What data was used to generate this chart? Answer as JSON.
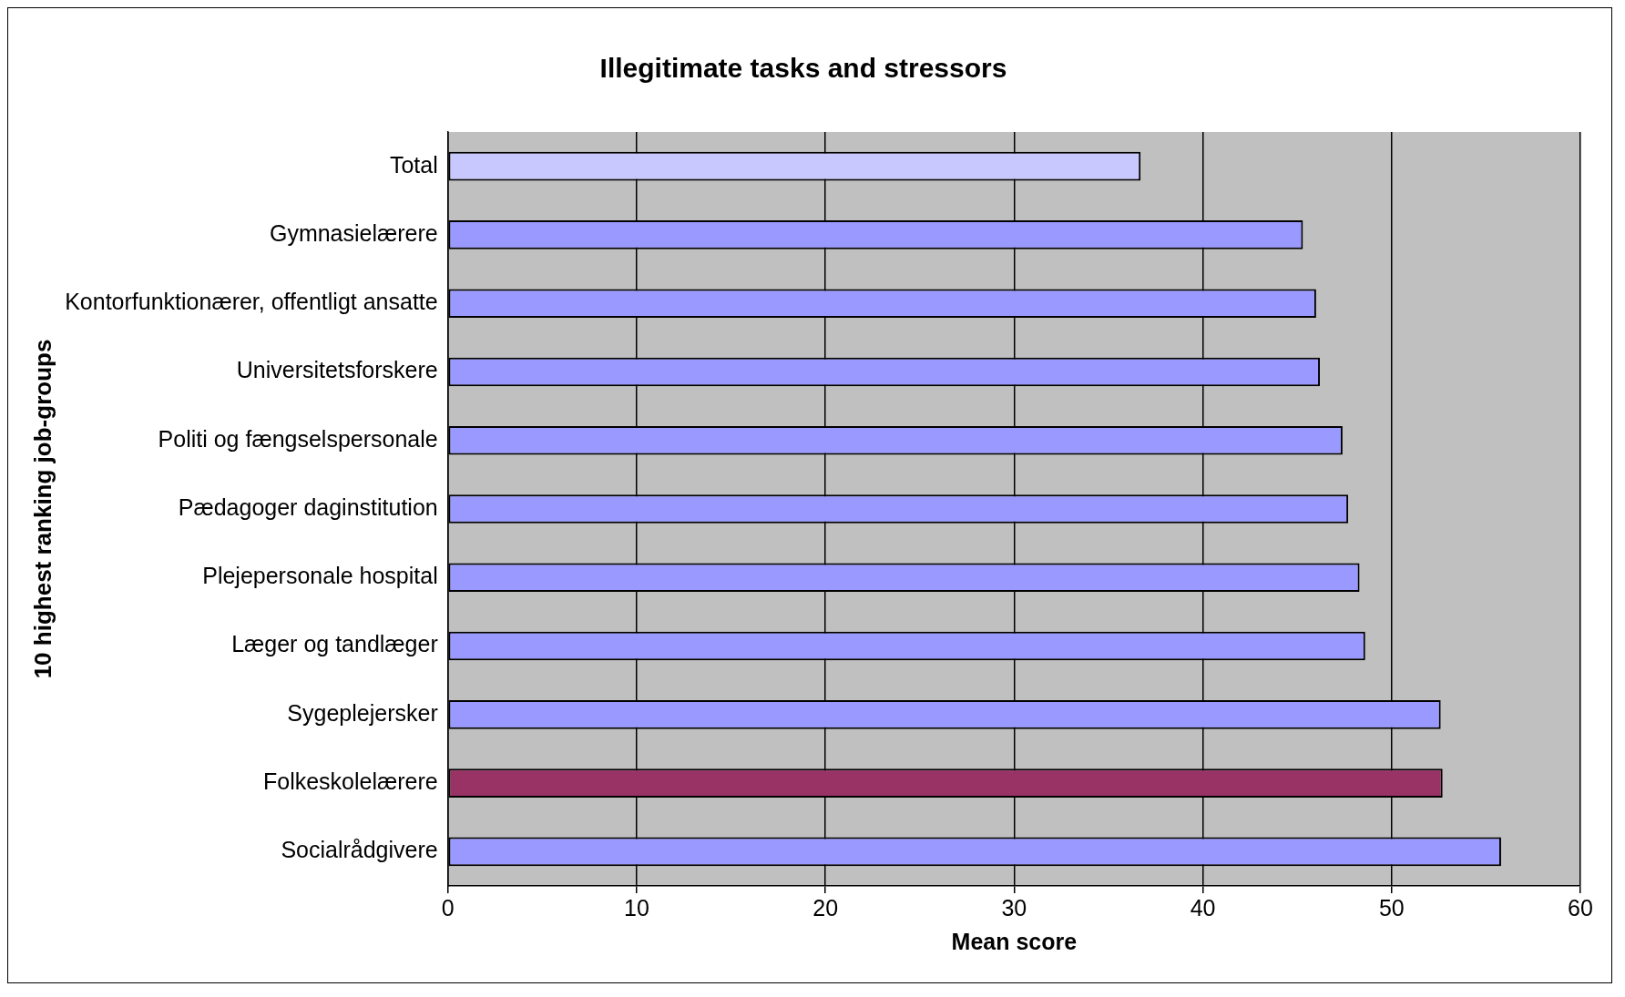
{
  "chart_data": {
    "type": "bar",
    "orientation": "horizontal",
    "title": "Illegitimate tasks and stressors",
    "xlabel": "Mean score",
    "ylabel": "10 highest ranking job-groups",
    "categories": [
      "Total",
      "Gymnasielærere",
      "Kontorfunktionærer, offentligt ansatte",
      "Universitetsforskere",
      "Politi og fængselspersonale",
      "Pædagoger daginstitution",
      "Plejepersonale hospital",
      "Læger og tandlæger",
      "Sygeplejersker",
      "Folkeskolelærere",
      "Socialrådgivere"
    ],
    "values": [
      36.7,
      45.3,
      46.0,
      46.2,
      47.4,
      47.7,
      48.3,
      48.6,
      52.6,
      52.7,
      55.8
    ],
    "colors": [
      "#c8c8ff",
      "#9999ff",
      "#9999ff",
      "#9999ff",
      "#9999ff",
      "#9999ff",
      "#9999ff",
      "#9999ff",
      "#9999ff",
      "#993366",
      "#9999ff"
    ],
    "xlim": [
      0,
      60
    ],
    "xticks": [
      0,
      10,
      20,
      30,
      40,
      50,
      60
    ],
    "grid": "x",
    "legend": false
  }
}
